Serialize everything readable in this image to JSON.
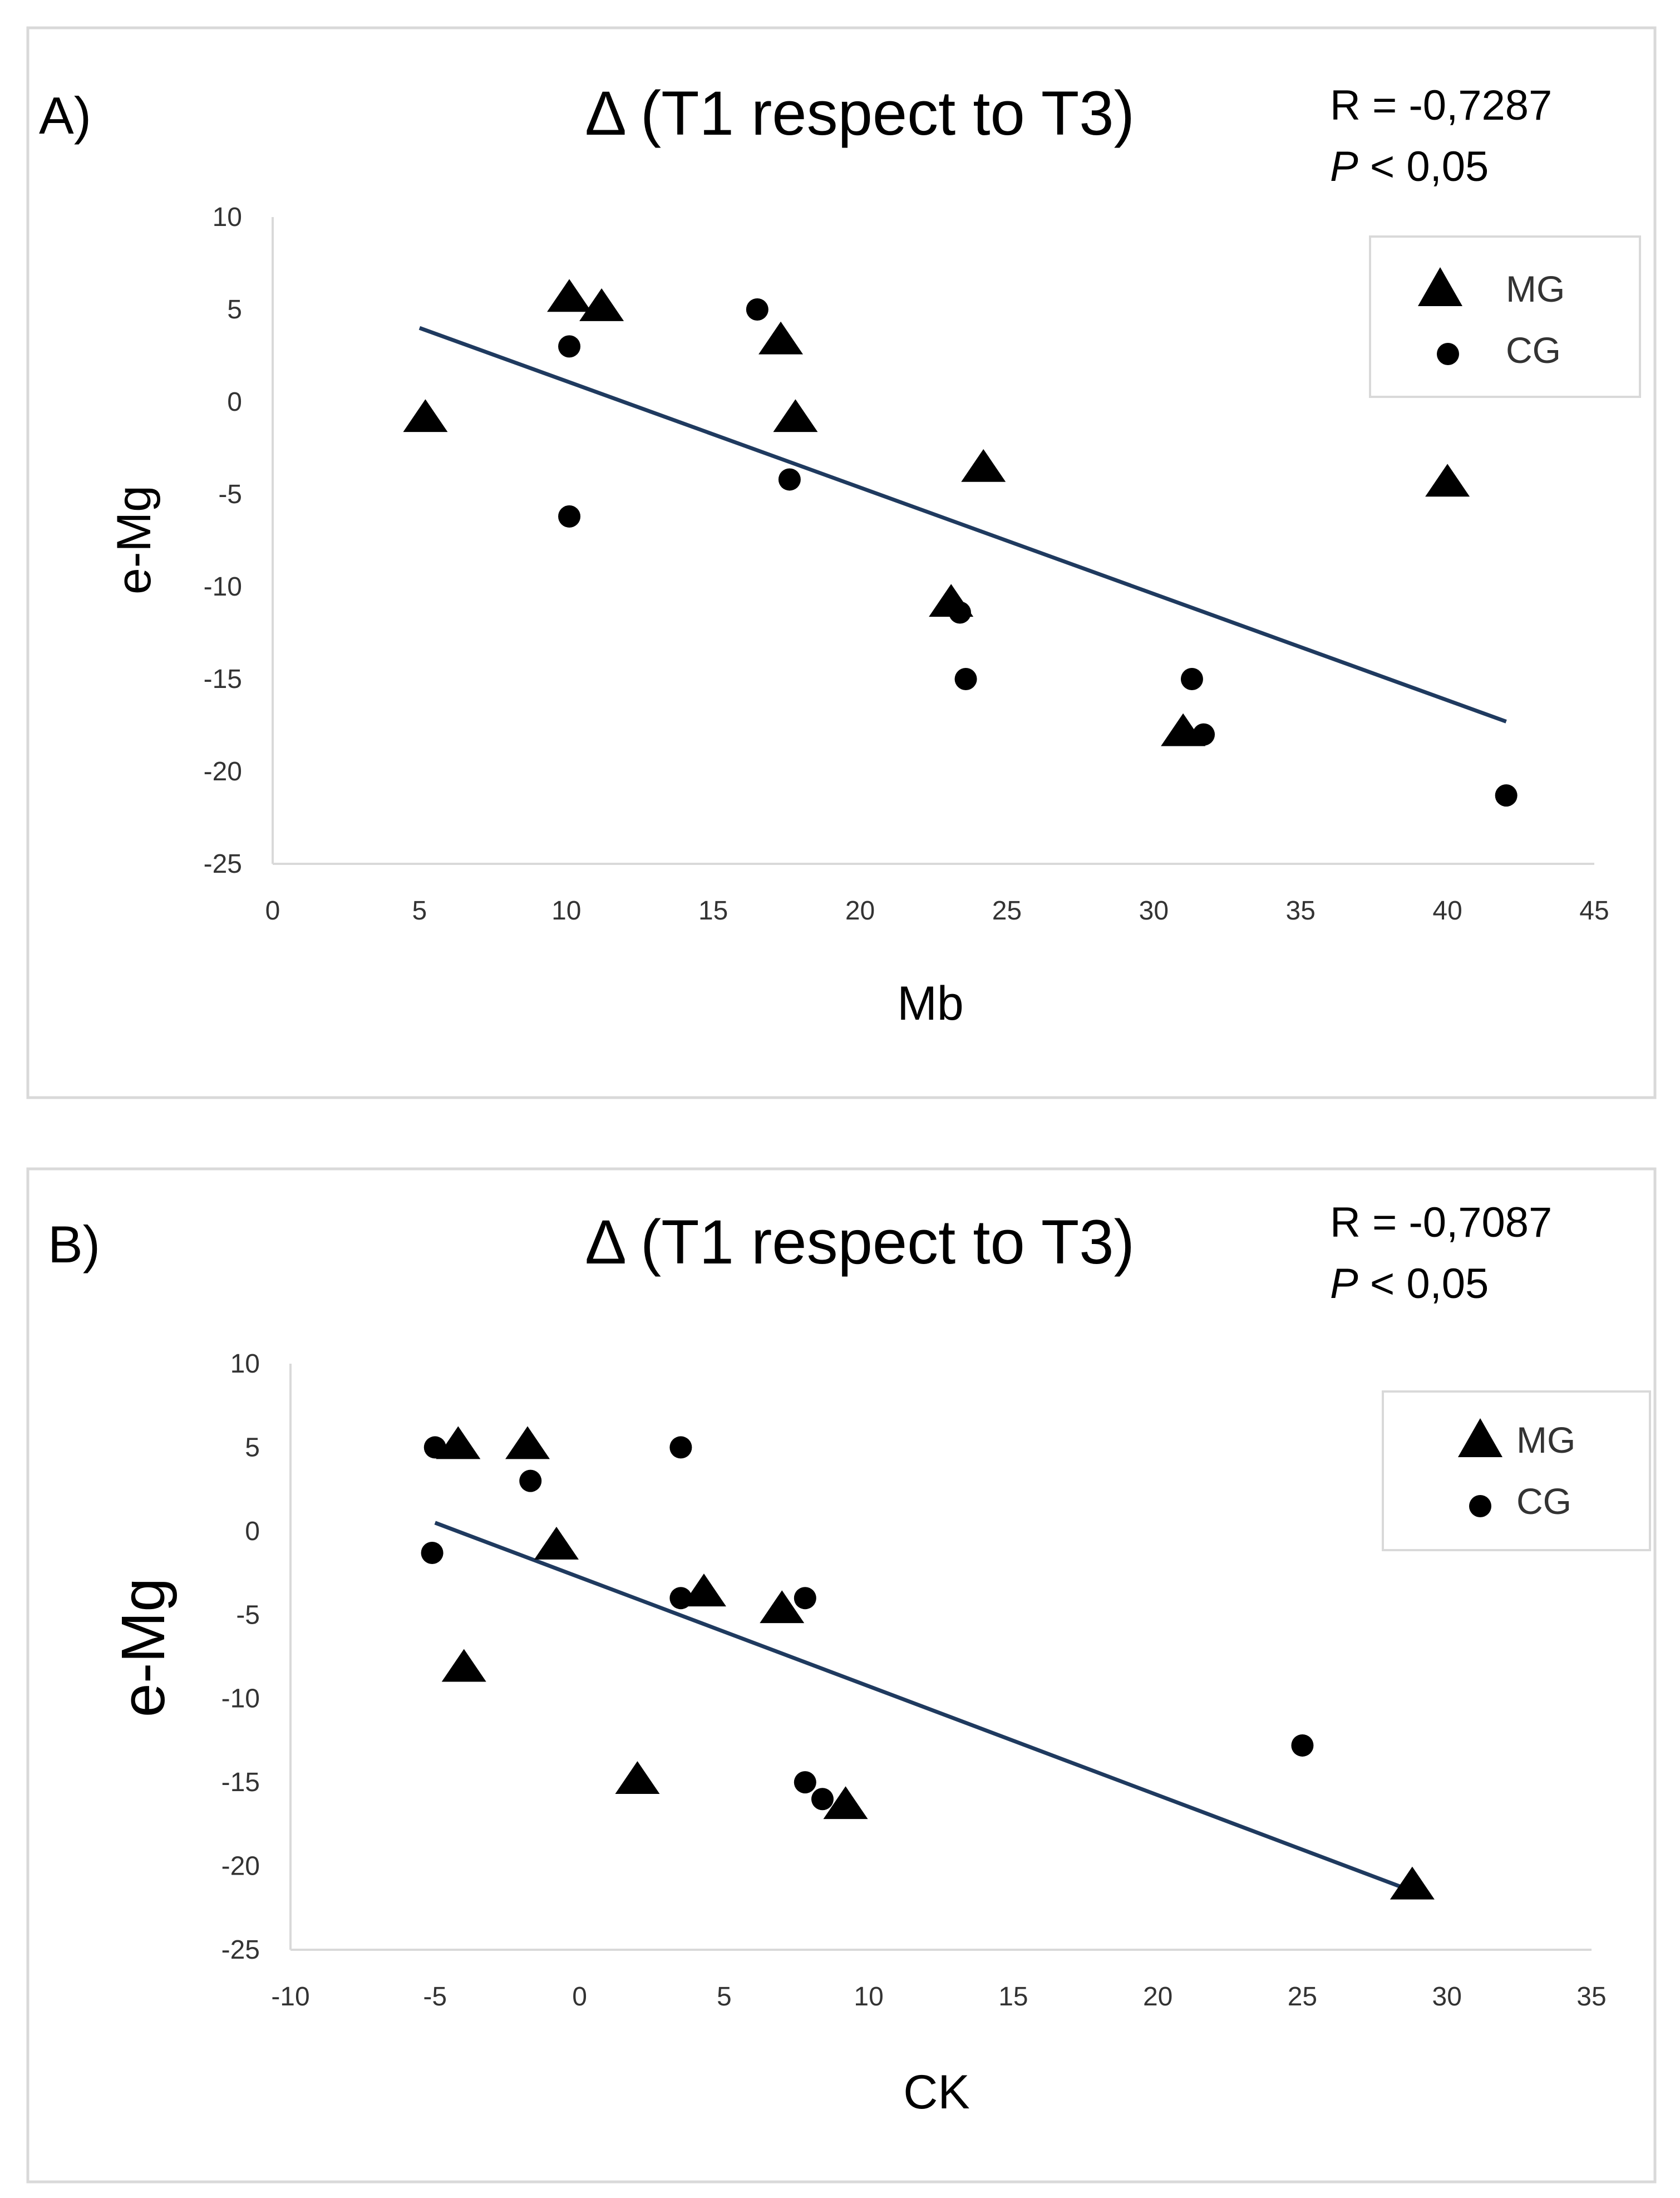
{
  "chart_data": [
    {
      "type": "scatter",
      "panel_label": "A)",
      "title": "Δ (T1 respect to T3)",
      "stats": {
        "r": "R = -0,7287",
        "p_symbol": "P",
        "p_rest": " < 0,05"
      },
      "xlabel": "Mb",
      "ylabel": "e-Mg",
      "xlim": [
        0,
        45
      ],
      "ylim": [
        -25,
        10
      ],
      "xticks": [
        "0",
        "5",
        "10",
        "15",
        "20",
        "25",
        "30",
        "35",
        "40",
        "45"
      ],
      "yticks": [
        "10",
        "5",
        "0",
        "-5",
        "-10",
        "-15",
        "-20",
        "-25"
      ],
      "legend": {
        "position": "top-right",
        "entries": [
          "MG",
          "CG"
        ]
      },
      "trendline": {
        "x": [
          5,
          42
        ],
        "y": [
          4,
          -17.3
        ]
      },
      "series": [
        {
          "name": "MG",
          "marker": "triangle",
          "x": [
            5.2,
            10.1,
            11.2,
            17.3,
            17.8,
            24.2,
            23.1,
            31.0,
            40.0
          ],
          "y": [
            -1.0,
            5.5,
            5.0,
            3.2,
            -1.0,
            -3.7,
            -11.0,
            -18.0,
            -4.5
          ]
        },
        {
          "name": "CG",
          "marker": "circle",
          "x": [
            16.5,
            10.1,
            10.1,
            17.6,
            23.4,
            23.6,
            31.3,
            31.7,
            42.0
          ],
          "y": [
            5.0,
            3.0,
            -6.2,
            -4.2,
            -11.4,
            -15.0,
            -15.0,
            -18.0,
            -21.3
          ]
        }
      ]
    },
    {
      "type": "scatter",
      "panel_label": "B)",
      "title": "Δ (T1 respect to T3)",
      "stats": {
        "r": "R = -0,7087",
        "p_symbol": "P",
        "p_rest": " < 0,05"
      },
      "xlabel": "CK",
      "ylabel": "e-Mg",
      "xlim": [
        -10,
        35
      ],
      "ylim": [
        -25,
        10
      ],
      "xticks": [
        "-10",
        "-5",
        "0",
        "5",
        "10",
        "15",
        "20",
        "25",
        "30",
        "35"
      ],
      "yticks": [
        "10",
        "5",
        "0",
        "-5",
        "-10",
        "-15",
        "-20",
        "-25"
      ],
      "legend": {
        "position": "top-right",
        "entries": [
          "MG",
          "CG"
        ]
      },
      "trendline": {
        "x": [
          -5,
          28.5
        ],
        "y": [
          0.5,
          -21.3
        ]
      },
      "series": [
        {
          "name": "MG",
          "marker": "triangle",
          "x": [
            -4.2,
            -1.8,
            -0.8,
            4.3,
            7.0,
            2.0,
            9.2,
            -4.0,
            28.8
          ],
          "y": [
            5.0,
            5.0,
            -1.0,
            -3.8,
            -4.8,
            -15.0,
            -16.5,
            -8.3,
            -21.3
          ]
        },
        {
          "name": "CG",
          "marker": "circle",
          "x": [
            -5.0,
            -1.7,
            3.5,
            -5.1,
            3.5,
            7.8,
            7.8,
            8.4,
            25.0
          ],
          "y": [
            5.0,
            3.0,
            5.0,
            -1.3,
            -4.0,
            -4.0,
            -15.0,
            -16.0,
            -12.8
          ]
        }
      ]
    }
  ]
}
